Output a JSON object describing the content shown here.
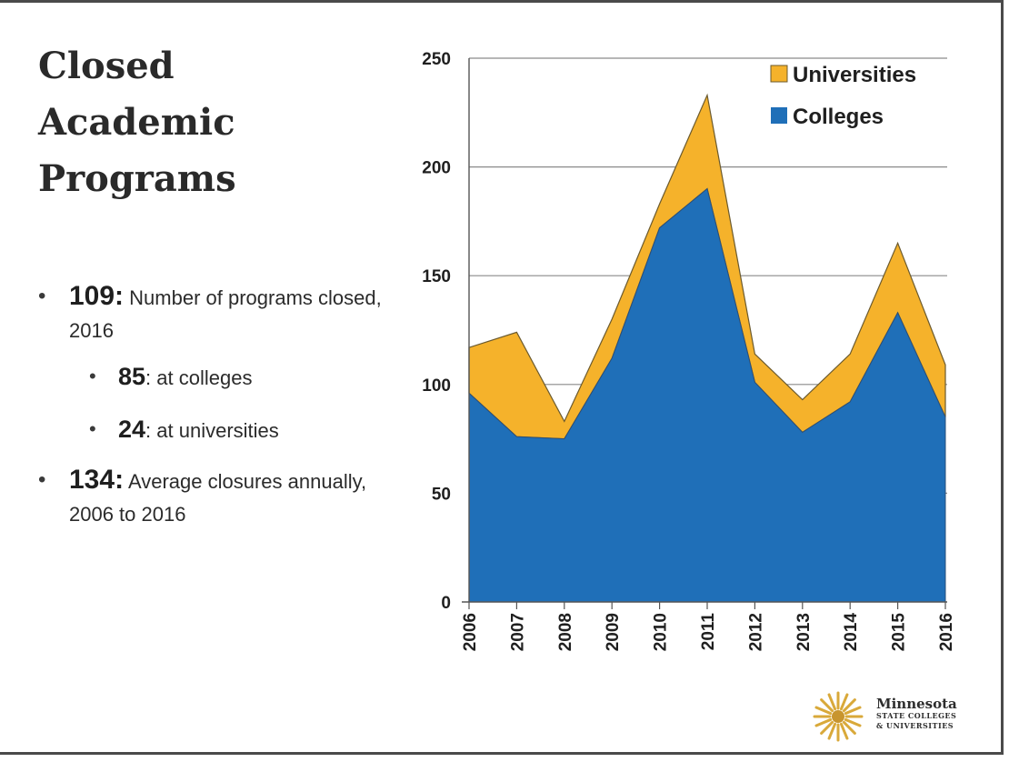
{
  "slide": {
    "title_lines": [
      "Closed",
      "Academic",
      "Programs"
    ],
    "bullets": {
      "b1_value": "109:",
      "b1_text": "Number of programs closed, 2016",
      "b1a_value": "85",
      "b1a_text": ": at colleges",
      "b1b_value": "24",
      "b1b_text": ": at universities",
      "b2_value": "134",
      "b2_colon": ":",
      "b2_text": "Average closures annually, 2006 to 2016"
    },
    "logo": {
      "line1": "Minnesota",
      "line2": "STATE COLLEGES",
      "line3": "& UNIVERSITIES"
    }
  },
  "colors": {
    "colleges": "#1f6fb8",
    "universities": "#f5b22b",
    "outline": "#6b5a2e"
  },
  "chart_data": {
    "type": "area",
    "stacked": true,
    "x": [
      "2006",
      "2007",
      "2008",
      "2009",
      "2010",
      "2011",
      "2012",
      "2013",
      "2014",
      "2015",
      "2016"
    ],
    "series": [
      {
        "name": "Colleges",
        "values": [
          96,
          76,
          75,
          112,
          172,
          190,
          101,
          78,
          92,
          133,
          85
        ]
      },
      {
        "name": "Universities",
        "values": [
          21,
          48,
          8,
          18,
          11,
          43,
          13,
          15,
          22,
          32,
          24
        ]
      }
    ],
    "yticks": [
      0,
      50,
      100,
      150,
      200,
      250
    ],
    "ylim": [
      0,
      250
    ],
    "grid": true,
    "legend_position": "top-right",
    "title": "",
    "xlabel": "",
    "ylabel": ""
  }
}
